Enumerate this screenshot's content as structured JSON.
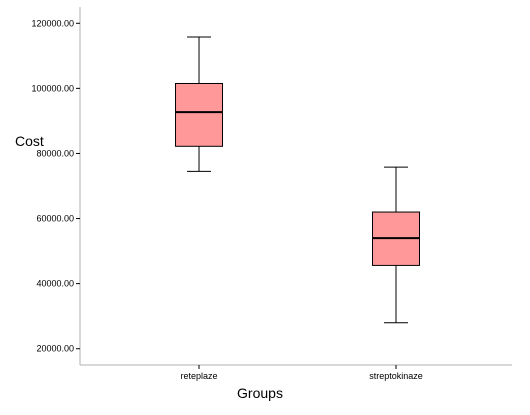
{
  "chart_data": {
    "type": "box",
    "xlabel": "Groups",
    "ylabel": "Cost",
    "ylim": [
      15000,
      125000
    ],
    "yticks": [
      20000,
      40000,
      60000,
      80000,
      100000,
      120000
    ],
    "ytick_labels": [
      "20000.00",
      "40000.00",
      "60000.00",
      "80000.00",
      "100000.00",
      "120000.00"
    ],
    "categories": [
      "reteplaze",
      "streptokinaze"
    ],
    "boxes": [
      {
        "category": "reteplaze",
        "min": 74500,
        "q1": 82200,
        "median": 92700,
        "q3": 101500,
        "max": 115800
      },
      {
        "category": "streptokinaze",
        "min": 28000,
        "q1": 45600,
        "median": 54000,
        "q3": 62000,
        "max": 75800
      }
    ],
    "box_fill": "#ff9999",
    "line_color": "#000000",
    "axis_color": "#b0b0b0",
    "grid": false
  }
}
